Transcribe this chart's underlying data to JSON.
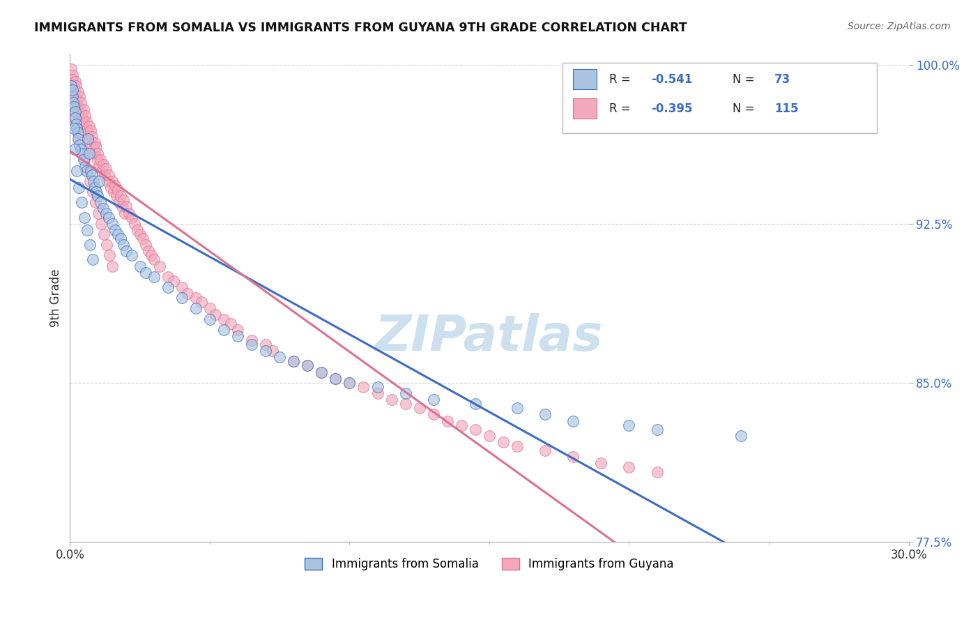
{
  "title": "IMMIGRANTS FROM SOMALIA VS IMMIGRANTS FROM GUYANA 9TH GRADE CORRELATION CHART",
  "source": "Source: ZipAtlas.com",
  "ylabel": "9th Grade",
  "legend_blue_label": "Immigrants from Somalia",
  "legend_pink_label": "Immigrants from Guyana",
  "legend_blue_R_val": "-0.541",
  "legend_blue_N_val": "73",
  "legend_pink_R_val": "-0.395",
  "legend_pink_N_val": "115",
  "xlim": [
    0.0,
    30.0
  ],
  "ylim": [
    77.5,
    100.5
  ],
  "y_ticks": [
    77.5,
    85.0,
    92.5,
    100.0
  ],
  "blue_color": "#aac4e0",
  "pink_color": "#f4a8bc",
  "blue_line_color": "#3a6cc6",
  "pink_line_color": "#e07090",
  "background_color": "#ffffff",
  "watermark_color": "#cce0f0",
  "somalia_x": [
    0.05,
    0.08,
    0.1,
    0.12,
    0.15,
    0.18,
    0.2,
    0.22,
    0.25,
    0.28,
    0.3,
    0.35,
    0.4,
    0.45,
    0.5,
    0.55,
    0.6,
    0.65,
    0.7,
    0.75,
    0.8,
    0.85,
    0.9,
    0.95,
    1.0,
    1.1,
    1.2,
    1.3,
    1.4,
    1.5,
    1.6,
    1.7,
    1.8,
    1.9,
    2.0,
    2.2,
    2.5,
    2.7,
    3.0,
    3.5,
    4.0,
    4.5,
    5.0,
    5.5,
    6.0,
    6.5,
    7.0,
    7.5,
    8.0,
    8.5,
    9.0,
    9.5,
    10.0,
    11.0,
    12.0,
    13.0,
    14.5,
    16.0,
    17.0,
    18.0,
    20.0,
    21.0,
    24.0,
    0.13,
    0.17,
    0.23,
    0.32,
    0.42,
    0.52,
    0.62,
    0.72,
    0.82,
    1.05
  ],
  "somalia_y": [
    99.0,
    98.5,
    98.8,
    98.2,
    98.0,
    97.8,
    97.5,
    97.2,
    97.0,
    96.8,
    96.5,
    96.2,
    96.0,
    95.8,
    95.5,
    95.2,
    95.0,
    96.5,
    95.8,
    95.0,
    94.8,
    94.5,
    94.2,
    94.0,
    93.8,
    93.5,
    93.2,
    93.0,
    92.8,
    92.5,
    92.2,
    92.0,
    91.8,
    91.5,
    91.2,
    91.0,
    90.5,
    90.2,
    90.0,
    89.5,
    89.0,
    88.5,
    88.0,
    87.5,
    87.2,
    86.8,
    86.5,
    86.2,
    86.0,
    85.8,
    85.5,
    85.2,
    85.0,
    84.8,
    84.5,
    84.2,
    84.0,
    83.8,
    83.5,
    83.2,
    83.0,
    82.8,
    82.5,
    97.0,
    96.0,
    95.0,
    94.2,
    93.5,
    92.8,
    92.2,
    91.5,
    90.8,
    94.5
  ],
  "guyana_x": [
    0.05,
    0.08,
    0.1,
    0.12,
    0.15,
    0.18,
    0.2,
    0.22,
    0.25,
    0.28,
    0.3,
    0.35,
    0.38,
    0.4,
    0.45,
    0.48,
    0.5,
    0.55,
    0.58,
    0.6,
    0.65,
    0.68,
    0.7,
    0.75,
    0.78,
    0.8,
    0.85,
    0.88,
    0.9,
    0.95,
    0.98,
    1.0,
    1.05,
    1.1,
    1.15,
    1.2,
    1.25,
    1.3,
    1.35,
    1.4,
    1.45,
    1.5,
    1.55,
    1.6,
    1.65,
    1.7,
    1.75,
    1.8,
    1.85,
    1.9,
    1.95,
    2.0,
    2.1,
    2.2,
    2.3,
    2.4,
    2.5,
    2.6,
    2.7,
    2.8,
    2.9,
    3.0,
    3.2,
    3.5,
    3.7,
    4.0,
    4.2,
    4.5,
    4.7,
    5.0,
    5.2,
    5.5,
    5.75,
    6.0,
    6.5,
    7.0,
    7.25,
    8.0,
    8.5,
    9.0,
    9.5,
    10.0,
    10.5,
    11.0,
    11.5,
    12.0,
    12.5,
    13.0,
    13.5,
    14.0,
    14.5,
    15.0,
    15.5,
    16.0,
    17.0,
    18.0,
    19.0,
    20.0,
    21.0,
    0.13,
    0.17,
    0.23,
    0.32,
    0.42,
    0.52,
    0.62,
    0.72,
    0.82,
    0.92,
    1.02,
    1.12,
    1.22,
    1.32,
    1.42,
    1.52
  ],
  "guyana_y": [
    99.8,
    99.5,
    99.3,
    99.0,
    98.8,
    99.2,
    98.5,
    99.0,
    98.3,
    98.7,
    98.0,
    98.5,
    97.8,
    98.2,
    97.5,
    97.9,
    97.2,
    97.6,
    97.0,
    97.3,
    96.8,
    97.1,
    96.5,
    96.9,
    96.2,
    96.6,
    96.0,
    96.3,
    95.8,
    96.1,
    95.5,
    95.8,
    95.2,
    95.5,
    95.0,
    95.3,
    94.8,
    95.1,
    94.5,
    94.8,
    94.2,
    94.5,
    94.0,
    94.3,
    93.8,
    94.1,
    93.5,
    93.8,
    93.3,
    93.6,
    93.0,
    93.3,
    93.0,
    92.8,
    92.5,
    92.2,
    92.0,
    91.8,
    91.5,
    91.2,
    91.0,
    90.8,
    90.5,
    90.0,
    89.8,
    89.5,
    89.2,
    89.0,
    88.8,
    88.5,
    88.2,
    88.0,
    87.8,
    87.5,
    87.0,
    86.8,
    86.5,
    86.0,
    85.8,
    85.5,
    85.2,
    85.0,
    84.8,
    84.5,
    84.2,
    84.0,
    83.8,
    83.5,
    83.2,
    83.0,
    82.8,
    82.5,
    82.2,
    82.0,
    81.8,
    81.5,
    81.2,
    81.0,
    80.8,
    98.0,
    97.5,
    97.0,
    96.5,
    96.0,
    95.5,
    95.0,
    94.5,
    94.0,
    93.5,
    93.0,
    92.5,
    92.0,
    91.5,
    91.0,
    90.5
  ]
}
